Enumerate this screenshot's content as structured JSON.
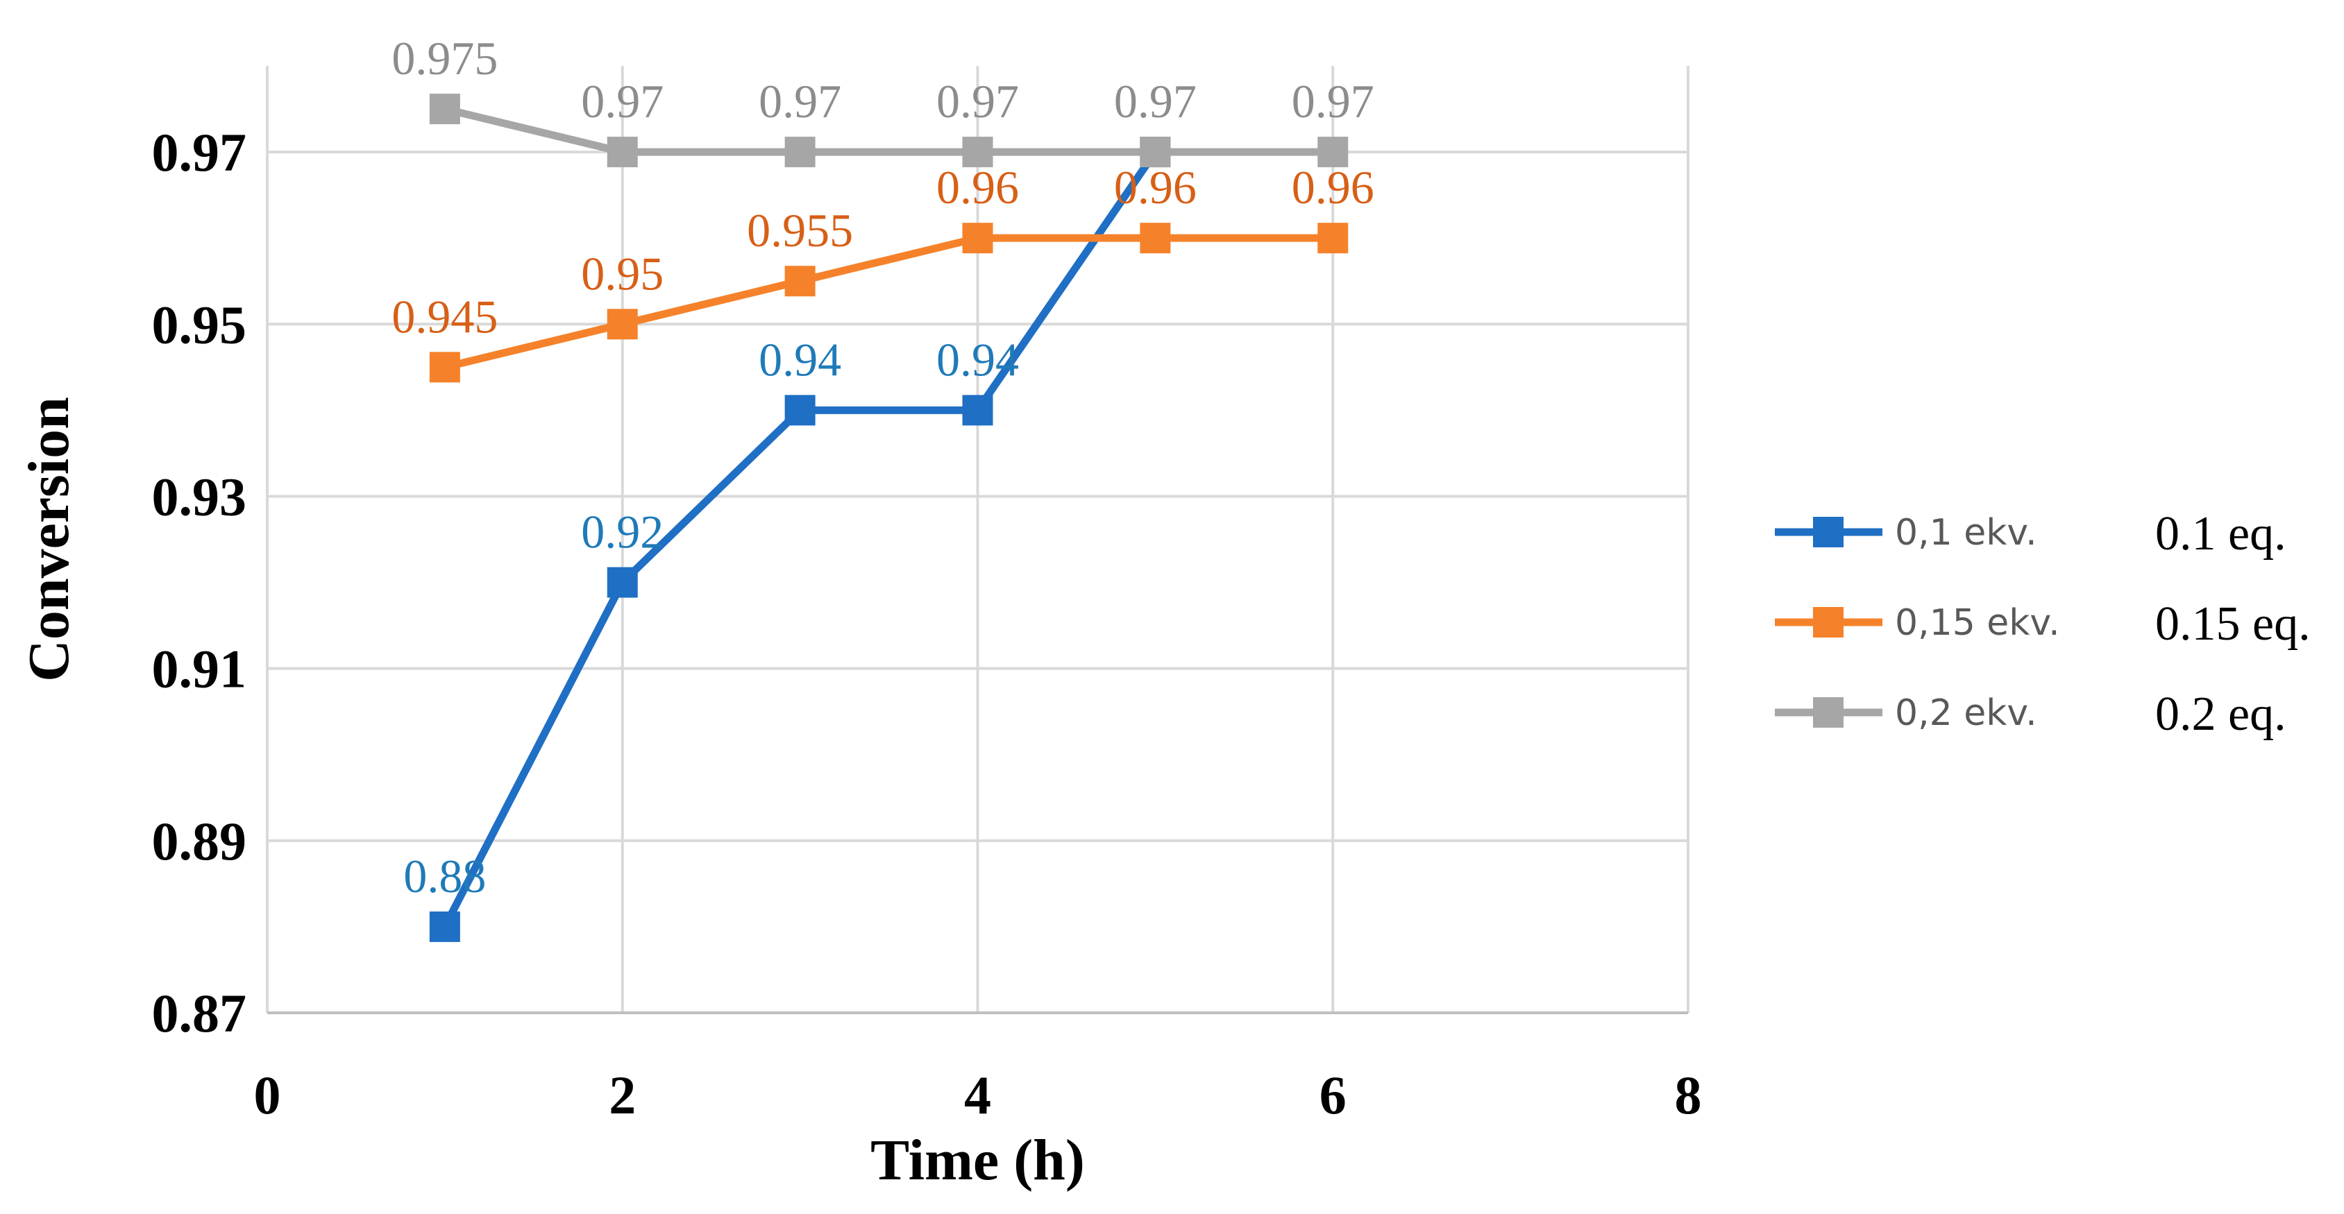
{
  "chart_data": {
    "type": "line",
    "xlabel": "Time (h)",
    "ylabel": "Conversion",
    "xlim": [
      0,
      8
    ],
    "ylim": [
      0.87,
      0.98
    ],
    "xticks": [
      "0",
      "2",
      "4",
      "6",
      "8"
    ],
    "yticks": [
      "0.87",
      "0.89",
      "0.91",
      "0.93",
      "0.95",
      "0.97"
    ],
    "grid": true,
    "legend_position": "right",
    "series": [
      {
        "name": "0,1 ekv.",
        "note": "0.1 eq.",
        "color": "#1f6fc4",
        "label_color": "#1f7ab8",
        "x": [
          1,
          2,
          3,
          4,
          5
        ],
        "y": [
          0.88,
          0.92,
          0.94,
          0.94,
          0.97
        ],
        "labels": [
          "0.88",
          "0.92",
          "0.94",
          "0.94",
          ""
        ]
      },
      {
        "name": "0,15 ekv.",
        "note": "0.15 eq.",
        "color": "#f5822a",
        "label_color": "#d75f16",
        "x": [
          1,
          2,
          3,
          4,
          5,
          6
        ],
        "y": [
          0.945,
          0.95,
          0.955,
          0.96,
          0.96,
          0.96
        ],
        "labels": [
          "0.945",
          "0.95",
          "0.955",
          "0.96",
          "0.96",
          "0.96"
        ]
      },
      {
        "name": "0,2 ekv.",
        "note": "0.2 eq.",
        "color": "#a6a6a6",
        "label_color": "#8c8c8c",
        "x": [
          1,
          2,
          3,
          4,
          5,
          6
        ],
        "y": [
          0.975,
          0.97,
          0.97,
          0.97,
          0.97,
          0.97
        ],
        "labels": [
          "0.975",
          "0.97",
          "0.97",
          "0.97",
          "0.97",
          "0.97"
        ]
      }
    ]
  }
}
